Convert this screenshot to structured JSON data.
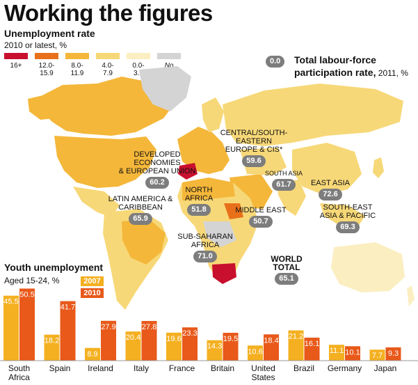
{
  "title": "Working the figures",
  "unemployment": {
    "title": "Unemployment rate",
    "note": "2010 or latest, %",
    "legend": [
      {
        "label": "16+",
        "color": "#c8102e"
      },
      {
        "label": "12.0-\n15.9",
        "color": "#e8701a"
      },
      {
        "label": "8.0-\n11.9",
        "color": "#f4b73a"
      },
      {
        "label": "4.0-\n7.9",
        "color": "#f7d878"
      },
      {
        "label": "0.0-\n3.9",
        "color": "#fbeec0"
      },
      {
        "label": "No\ndata",
        "color": "#d4d4d4"
      }
    ]
  },
  "lfp": {
    "key_value": "0.0",
    "label": "Total labour-force",
    "label2": "participation rate,",
    "year": " 2011, %",
    "regions": [
      {
        "name": "CENTRAL/SOUTH-EASTERN\nEUROPE & CIS*",
        "value": "59.6"
      },
      {
        "name": "DEVELOPED ECONOMIES\n& EUROPEAN UNION",
        "value": "60.2"
      },
      {
        "name": "SOUTH ASIA",
        "value": "61.7"
      },
      {
        "name": "EAST ASIA",
        "value": "72.6"
      },
      {
        "name": "NORTH AFRICA",
        "value": "51.8"
      },
      {
        "name": "LATIN AMERICA &\nCARIBBEAN",
        "value": "65.9"
      },
      {
        "name": "MIDDLE EAST",
        "value": "50.7"
      },
      {
        "name": "SOUTH-EAST\nASIA & PACIFIC",
        "value": "69.3"
      },
      {
        "name": "SUB-SAHARAN\nAFRICA",
        "value": "71.0"
      },
      {
        "name": "WORLD\nTOTAL",
        "value": "65.1"
      }
    ]
  },
  "youth": {
    "title": "Youth unemployment",
    "note": "Aged 15-24, %",
    "year_a": "2007",
    "year_b": "2010",
    "color_a": "#f4b021",
    "color_b": "#e8591a"
  },
  "chart_data": {
    "type": "bar",
    "title": "Youth unemployment",
    "subtitle": "Aged 15-24, %",
    "categories": [
      "South\nAfrica",
      "Spain",
      "Ireland",
      "Italy",
      "France",
      "Britain",
      "United\nStates",
      "Brazil",
      "Germany",
      "Japan"
    ],
    "series": [
      {
        "name": "2007",
        "values": [
          45.5,
          18.2,
          8.9,
          20.4,
          19.6,
          14.3,
          10.6,
          21.2,
          11.1,
          7.7
        ]
      },
      {
        "name": "2010",
        "values": [
          50.5,
          41.7,
          27.9,
          27.8,
          23.3,
          19.5,
          18.4,
          16.1,
          10.1,
          9.3
        ]
      }
    ]
  }
}
